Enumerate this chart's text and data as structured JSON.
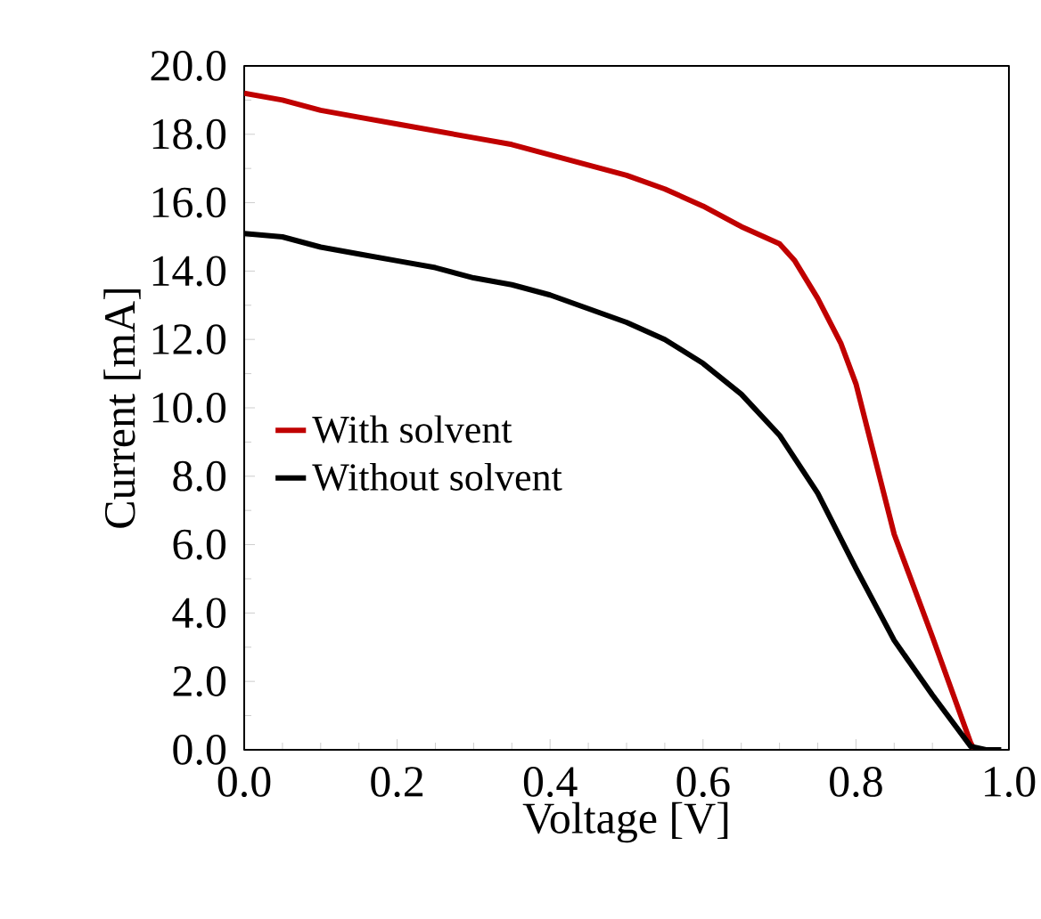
{
  "chart_data": {
    "type": "line",
    "xlabel": "Voltage [V]",
    "ylabel": "Current [mA]",
    "xlim": [
      0,
      1
    ],
    "ylim": [
      0,
      20
    ],
    "xticks": [
      {
        "value": 0,
        "label": "0.0"
      },
      {
        "value": 0.2,
        "label": "0.2"
      },
      {
        "value": 0.4,
        "label": "0.4"
      },
      {
        "value": 0.6,
        "label": "0.6"
      },
      {
        "value": 0.8,
        "label": "0.8"
      },
      {
        "value": 1,
        "label": "1.0"
      }
    ],
    "yticks": [
      {
        "value": 0,
        "label": "0.0"
      },
      {
        "value": 2,
        "label": "2.0"
      },
      {
        "value": 4,
        "label": "4.0"
      },
      {
        "value": 6,
        "label": "6.0"
      },
      {
        "value": 8,
        "label": "8.0"
      },
      {
        "value": 10,
        "label": "10.0"
      },
      {
        "value": 12,
        "label": "12.0"
      },
      {
        "value": 14,
        "label": "14.0"
      },
      {
        "value": 16,
        "label": "16.0"
      },
      {
        "value": 18,
        "label": "18.0"
      },
      {
        "value": 20,
        "label": "20.0"
      }
    ],
    "legend": "left",
    "grid": false,
    "marker": "none",
    "line_style": "solid",
    "series": [
      {
        "name": "With solvent",
        "color": "#c00000",
        "x": [
          0,
          0.05,
          0.1,
          0.15,
          0.2,
          0.25,
          0.3,
          0.35,
          0.4,
          0.45,
          0.5,
          0.55,
          0.6,
          0.65,
          0.7,
          0.72,
          0.75,
          0.78,
          0.8,
          0.85,
          0.9,
          0.95,
          0.955
        ],
        "values": [
          19.2,
          19.0,
          18.7,
          18.5,
          18.3,
          18.1,
          17.9,
          17.7,
          17.4,
          17.1,
          16.8,
          16.4,
          15.9,
          15.3,
          14.8,
          14.3,
          13.2,
          11.9,
          10.7,
          6.3,
          3.3,
          0.2,
          0
        ]
      },
      {
        "name": "Without solvent",
        "color": "#000000",
        "x": [
          0,
          0.05,
          0.1,
          0.15,
          0.2,
          0.25,
          0.3,
          0.35,
          0.4,
          0.45,
          0.5,
          0.55,
          0.6,
          0.65,
          0.7,
          0.75,
          0.8,
          0.85,
          0.9,
          0.95,
          0.97,
          0.99
        ],
        "values": [
          15.1,
          15.0,
          14.7,
          14.5,
          14.3,
          14.1,
          13.8,
          13.6,
          13.3,
          12.9,
          12.5,
          12.0,
          11.3,
          10.4,
          9.2,
          7.5,
          5.3,
          3.2,
          1.6,
          0.1,
          0,
          0
        ]
      }
    ]
  }
}
